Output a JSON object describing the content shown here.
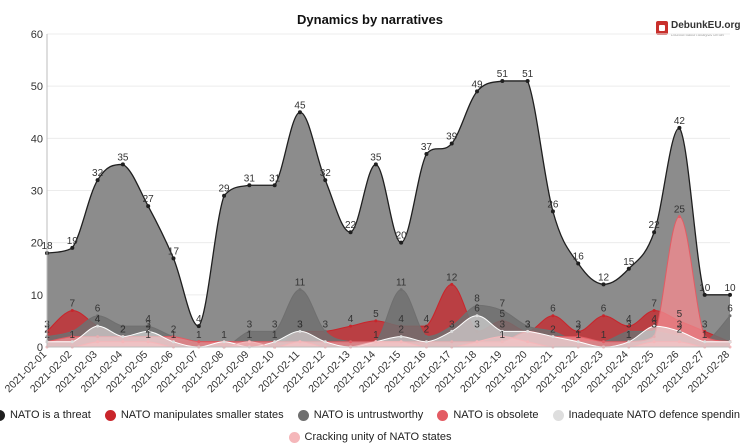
{
  "chart_data": {
    "type": "area",
    "title": "Dynamics by narratives",
    "brand": "DebunkEU.org",
    "brand_tagline": "Disinformation analysis center",
    "ylim": [
      0,
      60
    ],
    "yticks": [
      0,
      10,
      20,
      30,
      40,
      50,
      60
    ],
    "grid": true,
    "legend_position": "bottom",
    "categories": [
      "2021-02-01",
      "2021-02-02",
      "2021-02-03",
      "2021-02-04",
      "2021-02-05",
      "2021-02-06",
      "2021-02-07",
      "2021-02-08",
      "2021-02-09",
      "2021-02-10",
      "2021-02-11",
      "2021-02-12",
      "2021-02-13",
      "2021-02-14",
      "2021-02-15",
      "2021-02-16",
      "2021-02-17",
      "2021-02-18",
      "2021-02-19",
      "2021-02-20",
      "2021-02-21",
      "2021-02-22",
      "2021-02-23",
      "2021-02-24",
      "2021-02-25",
      "2021-02-26",
      "2021-02-27",
      "2021-02-28"
    ],
    "series": [
      {
        "name": "NATO is a threat",
        "color": "#1f1f1f",
        "fill": "#8c8c8c",
        "fill_opacity": 1,
        "values": [
          18,
          19,
          32,
          35,
          27,
          17,
          4,
          29,
          31,
          31,
          45,
          32,
          22,
          35,
          20,
          37,
          39,
          49,
          51,
          51,
          26,
          16,
          12,
          15,
          22,
          42,
          10,
          10
        ]
      },
      {
        "name": "NATO manipulates smaller states",
        "color": "#c9252b",
        "fill": "#c9252b",
        "fill_opacity": 0.75,
        "values": [
          3,
          7,
          4,
          2,
          1,
          1,
          1,
          1,
          1,
          0,
          3,
          3,
          4,
          5,
          4,
          4,
          12,
          3,
          5,
          3,
          6,
          3,
          6,
          4,
          7,
          5,
          3,
          1
        ]
      },
      {
        "name": "NATO is untrustworthy",
        "color": "#6f6f6f",
        "fill": "#707070",
        "fill_opacity": 0.85,
        "values": [
          2,
          3,
          6,
          4,
          4,
          2,
          1,
          0,
          3,
          3,
          11,
          3,
          1,
          1,
          11,
          2,
          4,
          8,
          7,
          4,
          3,
          1,
          1,
          3,
          3,
          2,
          1,
          6
        ]
      },
      {
        "name": "NATO is obsolete",
        "color": "#e35b63",
        "fill": "#f08a8f",
        "fill_opacity": 0.8,
        "values": [
          1,
          2,
          2,
          2,
          2,
          2,
          1,
          1,
          1,
          1,
          1,
          1,
          1,
          1,
          1,
          1,
          1,
          1,
          1,
          3,
          2,
          2,
          1,
          1,
          2,
          25,
          2,
          1
        ]
      },
      {
        "name": "Inadequate NATO defence spending",
        "color": "#ffffff",
        "fill": "#e6e6e6",
        "fill_opacity": 0.6,
        "values": [
          1,
          1,
          4,
          2,
          3,
          1,
          0,
          1,
          0,
          1,
          3,
          1,
          0,
          1,
          2,
          1,
          3,
          6,
          3,
          3,
          2,
          1,
          0,
          1,
          4,
          3,
          1,
          1
        ]
      },
      {
        "name": "Cracking unity of NATO states",
        "color": "#f5b7ba",
        "fill": "#f7c4c6",
        "fill_opacity": 0.6,
        "values": [
          0,
          0,
          1,
          1,
          1,
          0,
          0,
          0,
          1,
          0,
          1,
          0,
          0,
          1,
          1,
          0,
          0,
          1,
          2,
          1,
          0,
          0,
          0,
          0,
          1,
          1,
          0,
          0
        ]
      }
    ],
    "point_labels": [
      [
        18,
        19,
        32,
        35,
        27,
        17,
        4,
        29,
        31,
        31,
        45,
        32,
        22,
        35,
        20,
        37,
        39,
        49,
        51,
        51,
        26,
        16,
        12,
        15,
        22,
        42,
        10,
        10
      ],
      [
        3,
        7,
        4,
        2,
        1,
        1,
        1,
        "",
        1,
        "",
        3,
        3,
        4,
        5,
        4,
        4,
        12,
        3,
        5,
        3,
        6,
        3,
        6,
        4,
        7,
        5,
        3,
        ""
      ],
      [
        2,
        "",
        6,
        "",
        4,
        2,
        "",
        "",
        3,
        3,
        11,
        "",
        "",
        1,
        11,
        2,
        "",
        8,
        7,
        "",
        "",
        1,
        1,
        3,
        3,
        2,
        "",
        6
      ],
      [
        1,
        "",
        "",
        2,
        2,
        "",
        "",
        1,
        "",
        "",
        "",
        "",
        "",
        "",
        "",
        "",
        "",
        "",
        1,
        3,
        "",
        2,
        "",
        1,
        "",
        25,
        "",
        ""
      ],
      [
        "",
        1,
        4,
        "",
        3,
        "",
        "",
        "",
        "",
        1,
        3,
        "",
        "",
        "",
        2,
        "",
        3,
        6,
        3,
        "",
        2,
        "",
        "",
        1,
        4,
        3,
        1,
        ""
      ],
      [
        "",
        "",
        "",
        "",
        "",
        "",
        "",
        "",
        "",
        "",
        "",
        "",
        "",
        "",
        "",
        "",
        "",
        "",
        "",
        "",
        "",
        "",
        "",
        "",
        "",
        "",
        "",
        ""
      ]
    ]
  }
}
